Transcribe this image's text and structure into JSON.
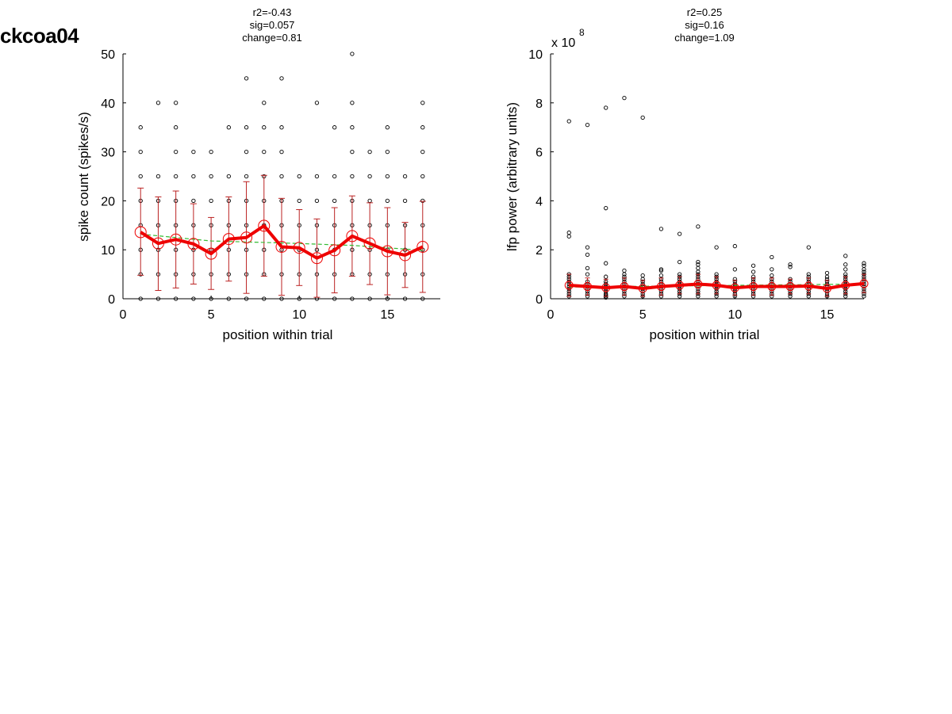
{
  "page_label": "ckcoa04",
  "colors": {
    "mean_line": "#ee0000",
    "error_bar": "#bb2222",
    "fit_line": "#33bb33",
    "points": "#000000"
  },
  "chart_data": [
    {
      "type": "scatter",
      "title_lines": [
        "r2=-0.43",
        "sig=0.057",
        "change=0.81"
      ],
      "xlabel": "position within trial",
      "ylabel": "spike count (spikes/s)",
      "xlim": [
        0,
        18
      ],
      "ylim": [
        0,
        50
      ],
      "xticks": [
        0,
        5,
        10,
        15
      ],
      "yticks": [
        0,
        10,
        20,
        30,
        40,
        50
      ],
      "exponent_label": "",
      "grid": false,
      "points": [
        {
          "x": 1,
          "y": [
            0,
            5,
            10,
            15,
            20,
            25,
            30,
            35
          ]
        },
        {
          "x": 2,
          "y": [
            0,
            5,
            10,
            15,
            20,
            25,
            40
          ]
        },
        {
          "x": 3,
          "y": [
            0,
            5,
            10,
            15,
            20,
            25,
            30,
            35,
            40
          ]
        },
        {
          "x": 4,
          "y": [
            0,
            5,
            10,
            15,
            20,
            25,
            30
          ]
        },
        {
          "x": 5,
          "y": [
            0,
            5,
            10,
            15,
            20,
            25,
            30
          ]
        },
        {
          "x": 6,
          "y": [
            0,
            5,
            10,
            15,
            20,
            25,
            35
          ]
        },
        {
          "x": 7,
          "y": [
            0,
            5,
            10,
            15,
            20,
            25,
            30,
            35,
            45
          ]
        },
        {
          "x": 8,
          "y": [
            0,
            5,
            10,
            15,
            20,
            25,
            30,
            35,
            40
          ]
        },
        {
          "x": 9,
          "y": [
            0,
            5,
            10,
            15,
            20,
            25,
            30,
            35,
            45
          ]
        },
        {
          "x": 10,
          "y": [
            0,
            5,
            10,
            15,
            20,
            25
          ]
        },
        {
          "x": 11,
          "y": [
            0,
            5,
            10,
            15,
            20,
            25,
            40
          ]
        },
        {
          "x": 12,
          "y": [
            0,
            5,
            10,
            15,
            20,
            25,
            35
          ]
        },
        {
          "x": 13,
          "y": [
            0,
            5,
            10,
            15,
            20,
            25,
            30,
            35,
            40,
            50
          ]
        },
        {
          "x": 14,
          "y": [
            0,
            5,
            10,
            15,
            20,
            25,
            30
          ]
        },
        {
          "x": 15,
          "y": [
            0,
            5,
            10,
            15,
            20,
            25,
            30,
            35
          ]
        },
        {
          "x": 16,
          "y": [
            0,
            5,
            10,
            15,
            20,
            25
          ]
        },
        {
          "x": 17,
          "y": [
            0,
            5,
            10,
            15,
            20,
            25,
            30,
            35,
            40
          ]
        }
      ],
      "mean": {
        "x": [
          1,
          2,
          3,
          4,
          5,
          6,
          7,
          8,
          9,
          10,
          11,
          12,
          13,
          14,
          15,
          16,
          17
        ],
        "y": [
          13.6,
          11.3,
          12.1,
          11.2,
          9.2,
          12.2,
          12.5,
          14.9,
          10.6,
          10.4,
          8.3,
          9.9,
          12.8,
          11.3,
          9.7,
          8.9,
          10.6
        ]
      },
      "error_bars": {
        "x": [
          1,
          2,
          3,
          4,
          5,
          6,
          7,
          8,
          9,
          10,
          11,
          12,
          13,
          14,
          15,
          16,
          17
        ],
        "low": [
          4.8,
          1.7,
          2.2,
          3.0,
          1.9,
          3.6,
          1.1,
          4.6,
          0.7,
          2.7,
          0.3,
          1.2,
          4.6,
          2.9,
          0.8,
          2.3,
          1.3
        ],
        "high": [
          22.6,
          20.8,
          22.0,
          19.4,
          16.6,
          20.8,
          23.9,
          25.2,
          20.5,
          18.2,
          16.3,
          18.6,
          21.0,
          19.6,
          18.6,
          15.6,
          19.9
        ]
      },
      "fit": {
        "x": [
          1,
          5,
          9,
          13,
          17
        ],
        "y": [
          13.2,
          11.8,
          11.4,
          10.9,
          9.9
        ]
      }
    },
    {
      "type": "scatter",
      "title_lines": [
        "r2=0.25",
        "sig=0.16",
        "change=1.09"
      ],
      "xlabel": "position within trial",
      "ylabel": "lfp power (arbitrary units)",
      "xlim": [
        0,
        17
      ],
      "ylim": [
        0,
        10
      ],
      "xticks": [
        0,
        5,
        10,
        15
      ],
      "yticks": [
        0,
        2,
        4,
        6,
        8,
        10
      ],
      "exponent_label": "x 10",
      "exponent_power": "8",
      "grid": false,
      "points": [
        {
          "x": 1,
          "y": [
            0.1,
            0.2,
            0.3,
            0.4,
            0.5,
            0.6,
            0.7,
            0.8,
            0.9,
            1.0,
            2.55,
            2.7,
            7.25
          ]
        },
        {
          "x": 2,
          "y": [
            0.1,
            0.2,
            0.3,
            0.4,
            0.5,
            0.6,
            0.7,
            1.0,
            1.25,
            1.8,
            2.1,
            7.1
          ]
        },
        {
          "x": 3,
          "y": [
            0.05,
            0.1,
            0.15,
            0.2,
            0.3,
            0.4,
            0.5,
            0.6,
            0.7,
            0.9,
            1.45,
            3.7,
            7.8
          ]
        },
        {
          "x": 4,
          "y": [
            0.1,
            0.2,
            0.3,
            0.4,
            0.5,
            0.6,
            0.7,
            0.8,
            0.9,
            1.0,
            1.15,
            8.2
          ]
        },
        {
          "x": 5,
          "y": [
            0.1,
            0.2,
            0.3,
            0.4,
            0.5,
            0.6,
            0.7,
            0.8,
            0.95,
            7.4
          ]
        },
        {
          "x": 6,
          "y": [
            0.1,
            0.2,
            0.3,
            0.4,
            0.5,
            0.6,
            0.7,
            0.8,
            0.95,
            1.15,
            1.2,
            2.85
          ]
        },
        {
          "x": 7,
          "y": [
            0.1,
            0.2,
            0.3,
            0.4,
            0.5,
            0.6,
            0.7,
            0.8,
            0.9,
            1.0,
            1.5,
            2.65
          ]
        },
        {
          "x": 8,
          "y": [
            0.1,
            0.2,
            0.3,
            0.4,
            0.5,
            0.6,
            0.7,
            0.8,
            0.9,
            1.0,
            1.1,
            1.25,
            1.4,
            1.5,
            2.95
          ]
        },
        {
          "x": 9,
          "y": [
            0.1,
            0.2,
            0.3,
            0.4,
            0.5,
            0.6,
            0.7,
            0.8,
            0.9,
            1.0,
            2.1
          ]
        },
        {
          "x": 10,
          "y": [
            0.1,
            0.2,
            0.3,
            0.4,
            0.5,
            0.6,
            0.7,
            0.8,
            1.2,
            2.15
          ]
        },
        {
          "x": 11,
          "y": [
            0.1,
            0.2,
            0.3,
            0.4,
            0.5,
            0.6,
            0.7,
            0.8,
            0.9,
            1.1,
            1.35
          ]
        },
        {
          "x": 12,
          "y": [
            0.1,
            0.2,
            0.3,
            0.4,
            0.5,
            0.6,
            0.7,
            0.8,
            0.95,
            1.2,
            1.7
          ]
        },
        {
          "x": 13,
          "y": [
            0.1,
            0.2,
            0.3,
            0.4,
            0.5,
            0.6,
            0.7,
            0.8,
            1.3,
            1.4
          ]
        },
        {
          "x": 14,
          "y": [
            0.1,
            0.2,
            0.3,
            0.4,
            0.5,
            0.6,
            0.7,
            0.8,
            0.9,
            1.0,
            2.1
          ]
        },
        {
          "x": 15,
          "y": [
            0.1,
            0.2,
            0.3,
            0.4,
            0.5,
            0.6,
            0.7,
            0.8,
            0.9,
            1.05
          ]
        },
        {
          "x": 16,
          "y": [
            0.1,
            0.2,
            0.3,
            0.4,
            0.5,
            0.6,
            0.7,
            0.8,
            0.9,
            1.0,
            1.2,
            1.4,
            1.75
          ]
        },
        {
          "x": 17,
          "y": [
            0.1,
            0.2,
            0.3,
            0.4,
            0.5,
            0.6,
            0.7,
            0.8,
            0.9,
            1.0,
            1.1,
            1.2,
            1.35,
            1.45
          ]
        }
      ],
      "mean": {
        "x": [
          1,
          2,
          3,
          4,
          5,
          6,
          7,
          8,
          9,
          10,
          11,
          12,
          13,
          14,
          15,
          16,
          17
        ],
        "y": [
          0.55,
          0.5,
          0.45,
          0.5,
          0.42,
          0.5,
          0.55,
          0.6,
          0.55,
          0.45,
          0.5,
          0.5,
          0.5,
          0.52,
          0.42,
          0.55,
          0.62
        ]
      },
      "error_bars": {
        "x": [
          1,
          2,
          3,
          4,
          5,
          6,
          7,
          8,
          9,
          10,
          11,
          12,
          13,
          14,
          15,
          16,
          17
        ],
        "low": [
          0.1,
          0.15,
          0.1,
          0.15,
          0.1,
          0.15,
          0.2,
          0.2,
          0.2,
          0.15,
          0.15,
          0.15,
          0.2,
          0.2,
          0.1,
          0.2,
          0.25
        ],
        "high": [
          1.0,
          0.85,
          0.8,
          0.85,
          0.75,
          0.85,
          0.9,
          1.0,
          0.9,
          0.75,
          0.85,
          0.85,
          0.8,
          0.85,
          0.75,
          0.9,
          1.0
        ]
      },
      "fit": {
        "x": [
          1,
          17
        ],
        "y": [
          0.48,
          0.6
        ]
      }
    }
  ]
}
